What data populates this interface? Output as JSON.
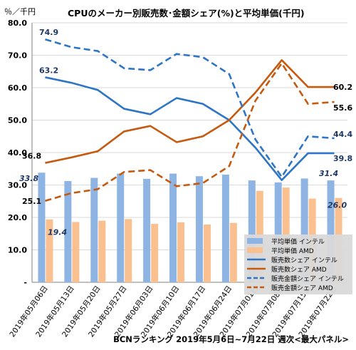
{
  "chart_data": {
    "type": "bar",
    "title": "CPUのメーカー別販売数･金額シェア(%)と平均単価(千円)",
    "unit_label": "％／千円",
    "footer": "BCNランキング 2019年5月6日~7月22日 週次<最大パネル>",
    "categories": [
      "2019年05月06日",
      "2019年05月13日",
      "2019年05月20日",
      "2019年05月27日",
      "2019年06月03日",
      "2019年06月10日",
      "2019年06月17日",
      "2019年06月24日",
      "2019年07月01日",
      "2019年07月08日",
      "2019年07月15日",
      "2019年07月22日"
    ],
    "ylim": [
      0,
      80
    ],
    "yticks": [
      "-",
      "10.0",
      "20.0",
      "30.0",
      "40.0",
      "50.0",
      "60.0",
      "70.0",
      "80.0"
    ],
    "grid": true,
    "legend_position": "bottom-right",
    "series": [
      {
        "name": "平均単価 インテル",
        "kind": "bar",
        "color": "#8db4e2",
        "values": [
          33.8,
          31.2,
          32.2,
          33.5,
          31.9,
          33.5,
          32.7,
          33.2,
          31.4,
          30.8,
          32.0,
          31.4
        ]
      },
      {
        "name": "平均単価 AMD",
        "kind": "bar",
        "color": "#fac090",
        "values": [
          19.4,
          18.6,
          19.0,
          19.5,
          18.0,
          18.5,
          17.8,
          18.3,
          28.2,
          29.2,
          25.8,
          26.0
        ]
      },
      {
        "name": "販売数シェア インテル",
        "kind": "line",
        "color": "#2e75c6",
        "dashed": false,
        "values": [
          63.2,
          61.5,
          59.3,
          53.5,
          51.8,
          56.8,
          55.0,
          50.0,
          41.5,
          31.5,
          39.8,
          39.8
        ]
      },
      {
        "name": "販売数シェア AMD",
        "kind": "line",
        "color": "#c55a11",
        "dashed": false,
        "values": [
          36.8,
          38.5,
          40.4,
          46.5,
          48.2,
          43.2,
          45.0,
          50.0,
          58.5,
          68.5,
          60.2,
          60.2
        ]
      },
      {
        "name": "販売金額シェア インテル",
        "kind": "line",
        "color": "#2e75c6",
        "dashed": true,
        "values": [
          74.9,
          72.5,
          71.3,
          66.0,
          65.4,
          70.4,
          69.4,
          64.2,
          44.0,
          32.5,
          45.0,
          44.4
        ]
      },
      {
        "name": "販売金額シェア AMD",
        "kind": "line",
        "color": "#c55a11",
        "dashed": true,
        "values": [
          25.1,
          27.5,
          28.7,
          34.0,
          34.6,
          29.6,
          30.6,
          35.8,
          56.0,
          67.5,
          55.0,
          55.6
        ]
      }
    ],
    "data_labels": [
      {
        "text": "74.9",
        "series": 4,
        "index": 0,
        "style": "bold",
        "color": "#1f3864"
      },
      {
        "text": "63.2",
        "series": 2,
        "index": 0,
        "style": "bold",
        "color": "#1f3864"
      },
      {
        "text": "36.8",
        "series": 3,
        "index": 0,
        "style": "bold",
        "color": "#000000"
      },
      {
        "text": "33.8",
        "series": 0,
        "index": 0,
        "style": "italic",
        "color": "#1f3864"
      },
      {
        "text": "25.1",
        "series": 5,
        "index": 0,
        "style": "bold",
        "color": "#000000"
      },
      {
        "text": "19.4",
        "series": 1,
        "index": 0,
        "style": "italic",
        "color": "#1f3864"
      },
      {
        "text": "60.2",
        "series": 3,
        "index": 11,
        "style": "bold",
        "color": "#000000"
      },
      {
        "text": "55.6",
        "series": 5,
        "index": 11,
        "style": "bold",
        "color": "#000000"
      },
      {
        "text": "44.4",
        "series": 4,
        "index": 11,
        "style": "bold",
        "color": "#1f3864"
      },
      {
        "text": "39.8",
        "series": 2,
        "index": 11,
        "style": "bold",
        "color": "#1f3864"
      },
      {
        "text": "31.4",
        "series": 0,
        "index": 11,
        "style": "italic",
        "color": "#1f3864"
      },
      {
        "text": "26.0",
        "series": 1,
        "index": 11,
        "style": "italic",
        "color": "#1f3864"
      }
    ]
  }
}
